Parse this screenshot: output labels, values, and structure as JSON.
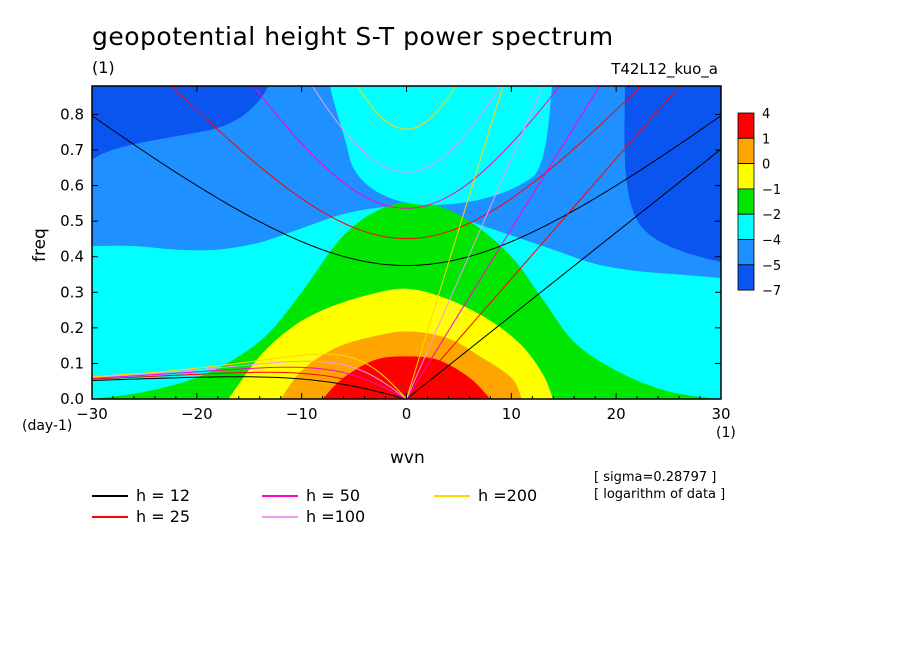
{
  "header": {
    "title": "geopotential height S-T power spectrum",
    "subtitle": "(1)",
    "experiment": "T42L12_kuo_a"
  },
  "notes": [
    "[ sigma=0.28797 ]",
    "[ logarithm of data ]"
  ],
  "chart_data": {
    "type": "heatmap",
    "xlabel": "wvn",
    "ylabel": "freq",
    "x_unit": "(1)",
    "y_unit": "(day-1)",
    "xlim": [
      -30,
      30
    ],
    "ylim": [
      0,
      0.88
    ],
    "xticks": [
      -30,
      -20,
      -10,
      0,
      10,
      20,
      30
    ],
    "yticks": [
      0.0,
      0.1,
      0.2,
      0.3,
      0.4,
      0.5,
      0.6,
      0.7,
      0.8
    ],
    "ytick_labels": [
      "0.0",
      "0.1",
      "0.2",
      "0.3",
      "0.4",
      "0.5",
      "0.6",
      "0.7",
      "0.8"
    ],
    "colorbar": {
      "levels": [
        "4",
        "1",
        "0",
        "−1",
        "−2",
        "−4",
        "−5",
        "−7"
      ],
      "colors": [
        "#ff0000",
        "#ffa500",
        "#ffff00",
        "#00e600",
        "#00ffff",
        "#1e90ff",
        "#0a55f0"
      ]
    },
    "contours": [
      {
        "x": [
          -30,
          -26,
          -22,
          -18,
          -14,
          -10,
          -6,
          -2,
          2,
          6,
          10,
          14,
          18,
          22,
          26,
          30
        ],
        "y": [
          0.43,
          0.43,
          0.42,
          0.42,
          0.44,
          0.48,
          0.52,
          0.54,
          0.54,
          0.5,
          0.46,
          0.42,
          0.38,
          0.36,
          0.35,
          0.34
        ],
        "color": "#00ffff"
      },
      {
        "x": [
          -30,
          -25,
          -20,
          -16,
          -13,
          -10,
          -6,
          -2,
          2,
          6,
          10,
          13,
          16,
          20,
          24,
          27,
          30
        ],
        "y": [
          0.0,
          0.02,
          0.06,
          0.12,
          0.19,
          0.3,
          0.46,
          0.54,
          0.55,
          0.5,
          0.4,
          0.28,
          0.16,
          0.08,
          0.03,
          0.01,
          0.0
        ],
        "color": "#00e600"
      },
      {
        "x": [
          -17,
          -14,
          -11,
          -8,
          -4,
          0,
          4,
          8,
          11,
          13,
          14
        ],
        "y": [
          0.0,
          0.12,
          0.2,
          0.25,
          0.29,
          0.31,
          0.28,
          0.22,
          0.15,
          0.07,
          0.0
        ],
        "color": "#ffff00"
      },
      {
        "x": [
          -12,
          -10,
          -7,
          -4,
          0,
          4,
          7,
          10,
          11
        ],
        "y": [
          0.0,
          0.08,
          0.14,
          0.17,
          0.19,
          0.17,
          0.12,
          0.06,
          0.0
        ],
        "color": "#ffa500"
      },
      {
        "x": [
          -8,
          -6,
          -3,
          0,
          3,
          6,
          8
        ],
        "y": [
          0.0,
          0.06,
          0.11,
          0.12,
          0.11,
          0.06,
          0.0
        ],
        "color": "#ff0000"
      }
    ],
    "series": [
      {
        "name": "h = 12",
        "color": "#000000",
        "equivalent_depth": 12
      },
      {
        "name": "h = 25",
        "color": "#ff0000",
        "equivalent_depth": 25
      },
      {
        "name": "h = 50",
        "color": "#ff00cc",
        "equivalent_depth": 50
      },
      {
        "name": "h =100",
        "color": "#ee99ee",
        "equivalent_depth": 100
      },
      {
        "name": "h =200",
        "color": "#ffd700",
        "equivalent_depth": 200
      }
    ],
    "grid": false,
    "legend_placement": "bottom-left"
  }
}
